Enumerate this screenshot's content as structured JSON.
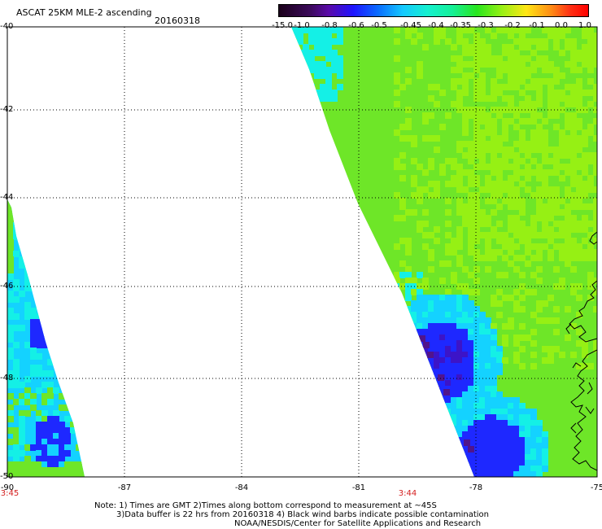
{
  "header": {
    "title": "ASCAT 25KM MLE-2 ascending",
    "date": "20160318"
  },
  "colorbar": {
    "labels": [
      "-15.0",
      "-1.0",
      "-0.8",
      "-0.6",
      "-0.5",
      "-0.45",
      "-0.4",
      "-0.35",
      "-0.3",
      "-0.2",
      "-0.1",
      "0.0",
      "1.0"
    ]
  },
  "map": {
    "lat_labels": [
      "-40",
      "-42",
      "-44",
      "-46",
      "-48",
      "-50"
    ],
    "lon_labels": [
      "-90",
      "-87",
      "-84",
      "-81",
      "-78",
      "-75"
    ],
    "time_labels": [
      "3:45",
      "3:44"
    ],
    "colors": {
      "green": "#6ee628",
      "lime": "#96f014",
      "cyan": "#14f0e6",
      "aqua": "#14d2ff",
      "blue": "#1e28ff",
      "navy": "#3c14c8",
      "purple": "#50148c",
      "coast": "#000000"
    }
  },
  "notes": {
    "line1": "Note: 1) Times are GMT 2)Times along bottom correspond to measurement at ~45S",
    "line2": "3)Data buffer is 22 hrs from 20160318 4) Black wind barbs indicate possible contamination",
    "line3": "NOAA/NESDIS/Center for Satellite Applications and Research"
  }
}
